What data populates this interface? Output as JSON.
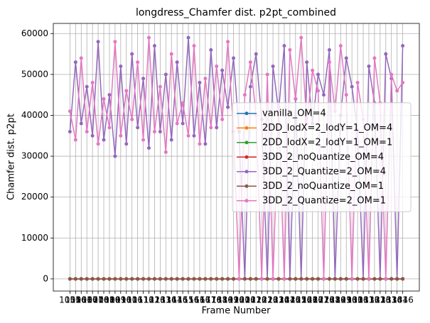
{
  "chart_data": {
    "type": "line",
    "title": "longdress_Chamfer dist. p2pt_combined",
    "xlabel": "Frame Number",
    "ylabel": "Chamfer dist. p2pt",
    "x": [
      1051,
      1056,
      1061,
      1066,
      1071,
      1076,
      1081,
      1086,
      1091,
      1096,
      1101,
      1106,
      1111,
      1116,
      1121,
      1126,
      1131,
      1136,
      1141,
      1146,
      1151,
      1156,
      1161,
      1166,
      1171,
      1176,
      1181,
      1186,
      1191,
      1196,
      1201,
      1206,
      1211,
      1216,
      1221,
      1226,
      1231,
      1236,
      1241,
      1246,
      1251,
      1256,
      1261,
      1266,
      1271,
      1276,
      1281,
      1286,
      1291,
      1296,
      1301,
      1306,
      1311,
      1316,
      1321,
      1326,
      1331,
      1336,
      1341,
      1346
    ],
    "xticks": [
      1051,
      1056,
      1061,
      1066,
      1071,
      1076,
      1081,
      1086,
      1091,
      1096,
      1101,
      1106,
      1111,
      1116,
      1121,
      1126,
      1131,
      1136,
      1141,
      1146,
      1151,
      1156,
      1161,
      1166,
      1171,
      1176,
      1181,
      1186,
      1191,
      1196,
      1201,
      1206,
      1211,
      1216,
      1221,
      1226,
      1231,
      1236,
      1241,
      1246,
      1251,
      1256,
      1261,
      1266,
      1271,
      1276,
      1281,
      1286,
      1291,
      1296,
      1301,
      1306,
      1311,
      1316,
      1321,
      1326,
      1331,
      1336,
      1341,
      1346
    ],
    "xlim": [
      1036.25,
      1360.75
    ],
    "ylim": [
      -2975,
      62475
    ],
    "yticks": [
      0,
      10000,
      20000,
      30000,
      40000,
      50000,
      60000
    ],
    "grid": true,
    "legend": "center right",
    "series": [
      {
        "name": "vanilla_OM=4",
        "color": "#1f77b4",
        "values": [
          0,
          0,
          0,
          0,
          0,
          0,
          0,
          0,
          0,
          0,
          0,
          0,
          0,
          0,
          0,
          0,
          0,
          0,
          0,
          0,
          0,
          0,
          0,
          0,
          0,
          0,
          0,
          0,
          0,
          0,
          0,
          0,
          0,
          0,
          0,
          0,
          0,
          0,
          0,
          0,
          0,
          0,
          0,
          0,
          0,
          0,
          0,
          0,
          0,
          0,
          0,
          0,
          0,
          0,
          0,
          0,
          0,
          0,
          0,
          0
        ]
      },
      {
        "name": "2DD_lodX=2_lodY=1_OM=4",
        "color": "#ff7f0e",
        "values": [
          0,
          0,
          0,
          0,
          0,
          0,
          0,
          0,
          0,
          0,
          0,
          0,
          0,
          0,
          0,
          0,
          0,
          0,
          0,
          0,
          0,
          0,
          0,
          0,
          0,
          0,
          0,
          0,
          0,
          0,
          0,
          0,
          0,
          0,
          0,
          0,
          0,
          0,
          0,
          0,
          0,
          0,
          0,
          0,
          0,
          0,
          0,
          0,
          0,
          0,
          0,
          0,
          0,
          0,
          0,
          0,
          0,
          0,
          0,
          0
        ]
      },
      {
        "name": "2DD_lodX=2_lodY=1_OM=1",
        "color": "#2ca02c",
        "values": [
          0,
          0,
          0,
          0,
          0,
          0,
          0,
          0,
          0,
          0,
          0,
          0,
          0,
          0,
          0,
          0,
          0,
          0,
          0,
          0,
          0,
          0,
          0,
          0,
          0,
          0,
          0,
          0,
          0,
          0,
          0,
          0,
          0,
          0,
          0,
          0,
          0,
          0,
          0,
          0,
          0,
          0,
          0,
          0,
          0,
          0,
          0,
          0,
          0,
          0,
          0,
          0,
          0,
          0,
          0,
          0,
          0,
          0,
          0,
          0
        ]
      },
      {
        "name": "3DD_2_noQuantize_OM=4",
        "color": "#d62728",
        "values": [
          0,
          0,
          0,
          0,
          0,
          0,
          0,
          0,
          0,
          0,
          0,
          0,
          0,
          0,
          0,
          0,
          0,
          0,
          0,
          0,
          0,
          0,
          0,
          0,
          0,
          0,
          0,
          0,
          0,
          0,
          0,
          0,
          0,
          0,
          0,
          0,
          0,
          0,
          0,
          0,
          0,
          0,
          0,
          0,
          0,
          0,
          0,
          0,
          0,
          0,
          0,
          0,
          0,
          0,
          0,
          0,
          0,
          0,
          0,
          0
        ]
      },
      {
        "name": "3DD_2_Quantize=2_OM=4",
        "color": "#9467bd",
        "values": [
          36000,
          53000,
          38000,
          47000,
          35000,
          58000,
          34000,
          45000,
          30000,
          52000,
          33000,
          55000,
          37000,
          49000,
          32000,
          57000,
          36000,
          50000,
          34000,
          53000,
          38000,
          59000,
          35000,
          48000,
          33000,
          56000,
          37000,
          51000,
          42000,
          54000,
          36000,
          0,
          47000,
          55000,
          39000,
          0,
          52000,
          41000,
          57000,
          0,
          44000,
          0,
          53000,
          38000,
          50000,
          45000,
          56000,
          0,
          40000,
          54000,
          47000,
          36000,
          0,
          52000,
          43000,
          0,
          55000,
          49000,
          0,
          57000
        ]
      },
      {
        "name": "3DD_2_noQuantize_OM=1",
        "color": "#8c564b",
        "values": [
          0,
          0,
          0,
          0,
          0,
          0,
          0,
          0,
          0,
          0,
          0,
          0,
          0,
          0,
          0,
          0,
          0,
          0,
          0,
          0,
          0,
          0,
          0,
          0,
          0,
          0,
          0,
          0,
          0,
          0,
          0,
          0,
          0,
          0,
          0,
          0,
          0,
          0,
          0,
          0,
          0,
          0,
          0,
          0,
          0,
          0,
          0,
          0,
          0,
          0,
          0,
          0,
          0,
          0,
          0,
          0,
          0,
          0,
          0,
          0
        ]
      },
      {
        "name": "3DD_2_Quantize=2_OM=1",
        "color": "#e377c2",
        "values": [
          41000,
          34000,
          54000,
          36000,
          48000,
          33000,
          44000,
          37000,
          58000,
          35000,
          46000,
          39000,
          53000,
          34000,
          59000,
          36000,
          47000,
          31000,
          55000,
          38000,
          43000,
          35000,
          57000,
          33000,
          49000,
          37000,
          52000,
          39000,
          58000,
          36000,
          0,
          45000,
          53000,
          40000,
          0,
          50000,
          0,
          42000,
          0,
          56000,
          44000,
          59000,
          38000,
          51000,
          46000,
          0,
          53000,
          41000,
          57000,
          45000,
          0,
          48000,
          39000,
          0,
          54000,
          43000,
          0,
          50000,
          46000,
          48000
        ]
      }
    ]
  }
}
